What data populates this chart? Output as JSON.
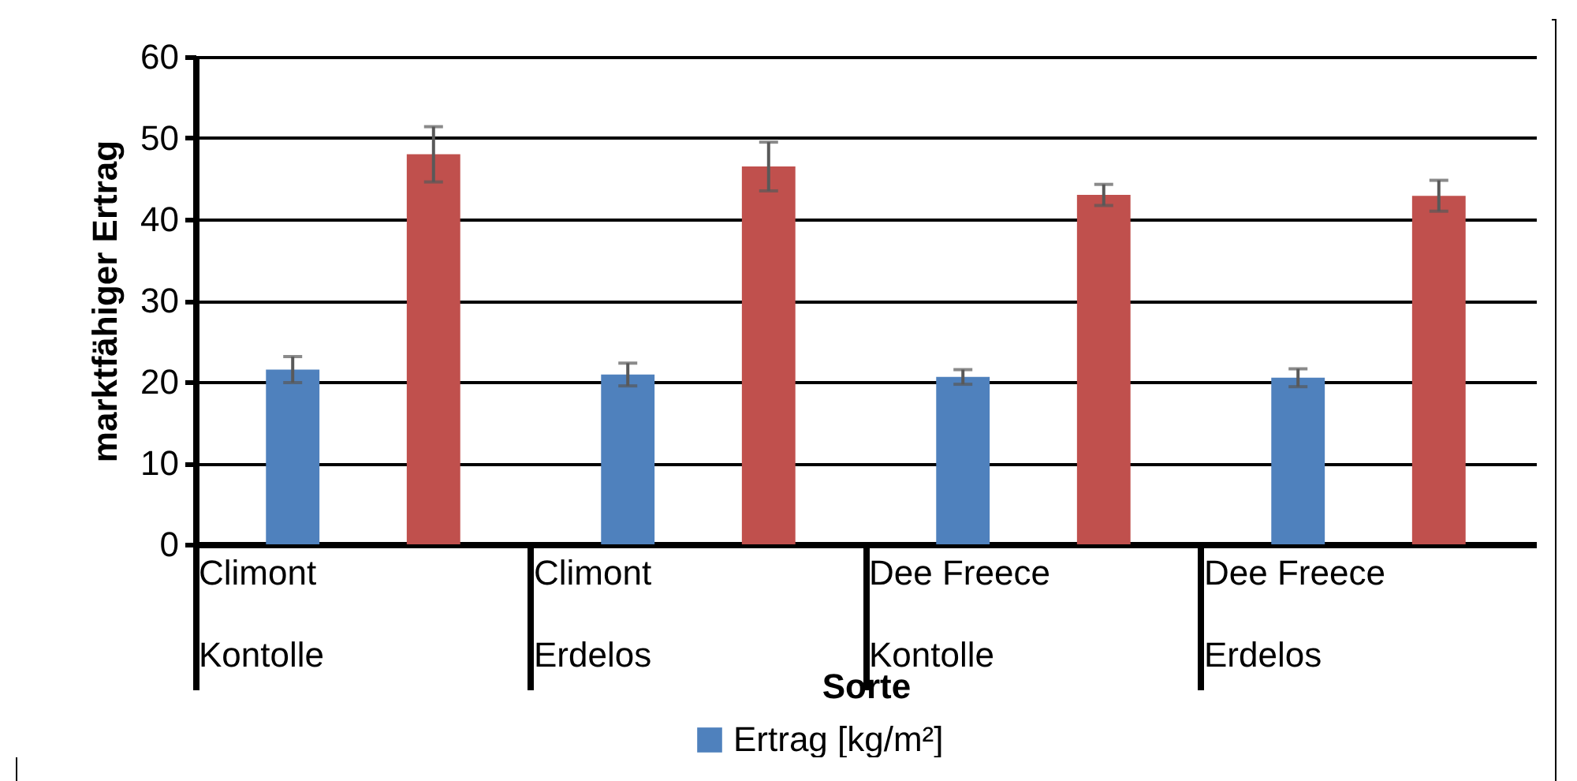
{
  "chart_data": {
    "type": "bar",
    "xlabel": "Sorte",
    "ylabel": "marktfähiger Ertrag",
    "categories": [
      "Climont Kontolle",
      "Climont Erdelos",
      "Dee Freece Kontolle",
      "Dee Freece Erdelos"
    ],
    "series": [
      {
        "name": "Ertrag [kg/m²]",
        "color": "#4f81bd",
        "values": [
          21.5,
          20.9,
          20.6,
          20.5
        ],
        "errors": [
          1.6,
          1.4,
          0.9,
          1.1
        ]
      },
      {
        "color": "#c0504d",
        "values": [
          48.0,
          46.5,
          43.0,
          42.9
        ],
        "errors": [
          3.4,
          3.0,
          1.3,
          1.9
        ]
      }
    ],
    "ylim": [
      0,
      60
    ],
    "yticks": [
      0,
      10,
      20,
      30,
      40,
      50,
      60
    ],
    "grid": "y",
    "legend": "bottom"
  }
}
